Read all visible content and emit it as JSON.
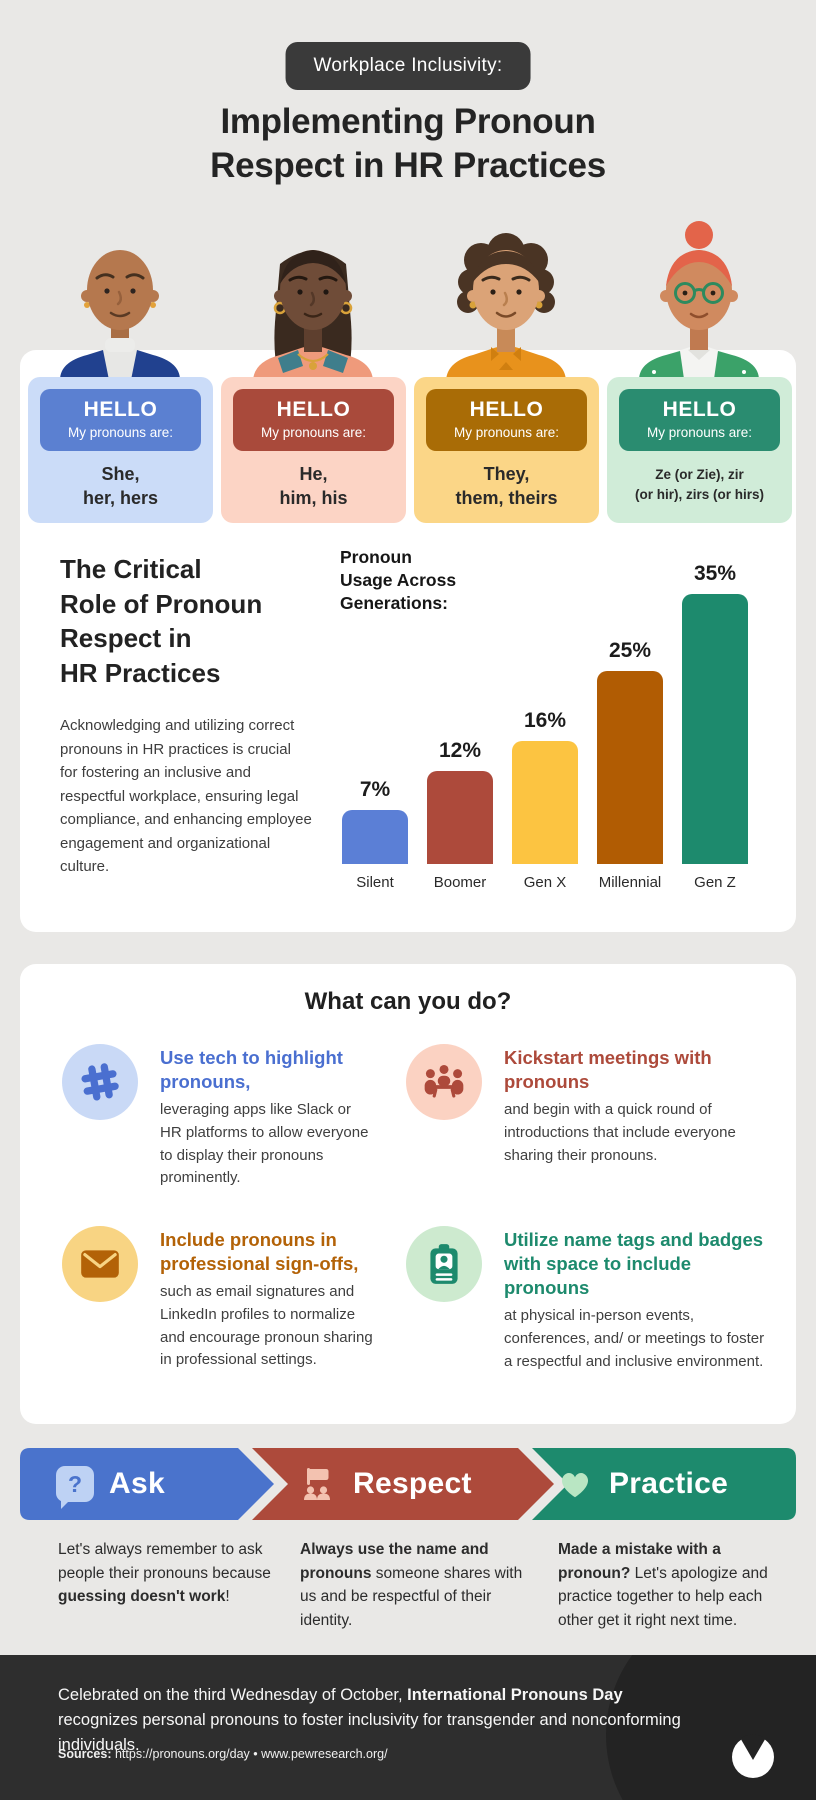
{
  "page": {
    "background": "#e9e8e6",
    "footer_bg": "#2e2e2e",
    "tag_bg": "#3a3a3a"
  },
  "header": {
    "tag": "Workplace Inclusivity:",
    "title": "Implementing Pronoun\nRespect in HR Practices"
  },
  "avatars": [
    {
      "name": "person-she-her"
    },
    {
      "name": "person-he-him"
    },
    {
      "name": "person-they-them"
    },
    {
      "name": "person-ze-zir"
    }
  ],
  "pronoun_cards": [
    {
      "badge_title": "HELLO",
      "badge_sub": "My pronouns are:",
      "pronouns": "She,\nher, hers",
      "card_bg": "#cbdcf8",
      "badge_bg": "#5b80d1"
    },
    {
      "badge_title": "HELLO",
      "badge_sub": "My pronouns are:",
      "pronouns": "He,\nhim, his",
      "card_bg": "#fcd4c5",
      "badge_bg": "#a94a3b"
    },
    {
      "badge_title": "HELLO",
      "badge_sub": "My pronouns are:",
      "pronouns": "They,\nthem, theirs",
      "card_bg": "#fbd687",
      "badge_bg": "#a96c06"
    },
    {
      "badge_title": "HELLO",
      "badge_sub": "My pronouns are:",
      "pronouns": "Ze (or Zie), zir\n(or hir), zirs (or hirs)",
      "card_bg": "#d0ecd8",
      "badge_bg": "#2a8c70"
    }
  ],
  "critical": {
    "heading": "The Critical\nRole of Pronoun\nRespect in\nHR Practices",
    "body": "Acknowledging and utilizing correct pronouns in HR practices is crucial for fostering an inclusive and respectful workplace, ensuring legal compliance, and enhancing employee engagement and organizational culture."
  },
  "chart_data": {
    "type": "bar",
    "title": "Pronoun\nUsage Across\nGenerations:",
    "categories": [
      "Silent",
      "Boomer",
      "Gen X",
      "Millennial",
      "Gen Z"
    ],
    "values": [
      7,
      12,
      16,
      25,
      35
    ],
    "unit": "%",
    "colors": [
      "#5b7fd6",
      "#ad4a3b",
      "#fcc441",
      "#b15c03",
      "#1d8a6d"
    ],
    "ylim": [
      0,
      35
    ],
    "grid": false,
    "value_labels": true,
    "legend": "none"
  },
  "actions": {
    "heading": "What can you do?",
    "items": [
      {
        "icon": "slack-hash-icon",
        "color": "#4a6fd0",
        "icon_bg": "#c9d9f6",
        "title": "Use tech to highlight pronouns,",
        "body": "leveraging apps like Slack or HR platforms to allow everyone to display their pronouns prominently."
      },
      {
        "icon": "meeting-people-icon",
        "color": "#ad4a3b",
        "icon_bg": "#fbd2c2",
        "title": "Kickstart meetings with pronouns",
        "body": "and begin with a quick round of introductions that include everyone sharing their pronouns."
      },
      {
        "icon": "envelope-icon",
        "color": "#b36207",
        "icon_bg": "#f8d483",
        "title": "Include pronouns in professional sign-offs,",
        "body": "such as email signatures and LinkedIn profiles to normalize and encourage pronoun sharing in professional settings."
      },
      {
        "icon": "name-badge-icon",
        "color": "#1d8a6d",
        "icon_bg": "#cdeacf",
        "title": "Utilize name tags and badges with space to include pronouns",
        "body": "at physical in-person events, conferences, and/ or meetings to foster a respectful and inclusive environment."
      }
    ]
  },
  "steps": [
    {
      "label": "Ask",
      "color": "#4a73cc",
      "icon": "question-bubble-icon",
      "icon_glyph": "?",
      "segments": [
        {
          "t": "Let's always remember to ask people their pronouns because ",
          "b": false
        },
        {
          "t": "guessing doesn't work",
          "b": true
        },
        {
          "t": "!",
          "b": false
        }
      ]
    },
    {
      "label": "Respect",
      "color": "#ad4a3b",
      "icon": "flag-people-icon",
      "segments": [
        {
          "t": "Always use the name and pronouns",
          "b": true
        },
        {
          "t": " someone shares with us and be respectful of their identity.",
          "b": false
        }
      ]
    },
    {
      "label": "Practice",
      "color": "#1d8a6d",
      "icon": "heart-icon",
      "segments": [
        {
          "t": "Made a mistake with a pronoun?",
          "b": true
        },
        {
          "t": " Let's apologize and practice together to help each other get it right next time.",
          "b": false
        }
      ]
    }
  ],
  "footer": {
    "segments": [
      {
        "t": "Celebrated on the third Wednesday of October, ",
        "b": false
      },
      {
        "t": "International Pronouns Day",
        "b": true
      },
      {
        "t": " recognizes personal pronouns to foster inclusivity for transgender and nonconforming individuals.",
        "b": false
      }
    ],
    "sources_label": "Sources:",
    "sources_text": " https://pronouns.org/day • www.pewresearch.org/"
  }
}
